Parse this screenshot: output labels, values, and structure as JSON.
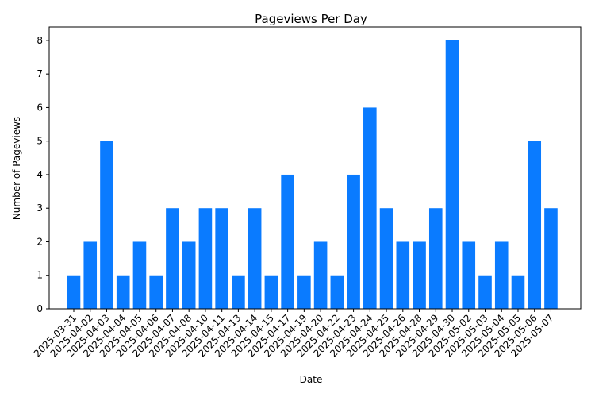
{
  "chart_data": {
    "type": "bar",
    "title": "Pageviews Per Day",
    "xlabel": "Date",
    "ylabel": "Number of Pageviews",
    "ylim": [
      0,
      8.4
    ],
    "yticks": [
      0,
      1,
      2,
      3,
      4,
      5,
      6,
      7,
      8
    ],
    "grid": false,
    "color": "#0a7bff",
    "categories": [
      "2025-03-31",
      "2025-04-02",
      "2025-04-03",
      "2025-04-04",
      "2025-04-05",
      "2025-04-06",
      "2025-04-07",
      "2025-04-08",
      "2025-04-10",
      "2025-04-11",
      "2025-04-13",
      "2025-04-14",
      "2025-04-15",
      "2025-04-17",
      "2025-04-19",
      "2025-04-20",
      "2025-04-22",
      "2025-04-23",
      "2025-04-24",
      "2025-04-25",
      "2025-04-26",
      "2025-04-28",
      "2025-04-29",
      "2025-04-30",
      "2025-05-02",
      "2025-05-03",
      "2025-05-04",
      "2025-05-05",
      "2025-05-06",
      "2025-05-07"
    ],
    "values": [
      1,
      2,
      5,
      1,
      2,
      1,
      3,
      2,
      3,
      3,
      1,
      3,
      1,
      4,
      1,
      2,
      1,
      4,
      6,
      3,
      2,
      2,
      3,
      8,
      2,
      1,
      2,
      1,
      5,
      3
    ]
  }
}
